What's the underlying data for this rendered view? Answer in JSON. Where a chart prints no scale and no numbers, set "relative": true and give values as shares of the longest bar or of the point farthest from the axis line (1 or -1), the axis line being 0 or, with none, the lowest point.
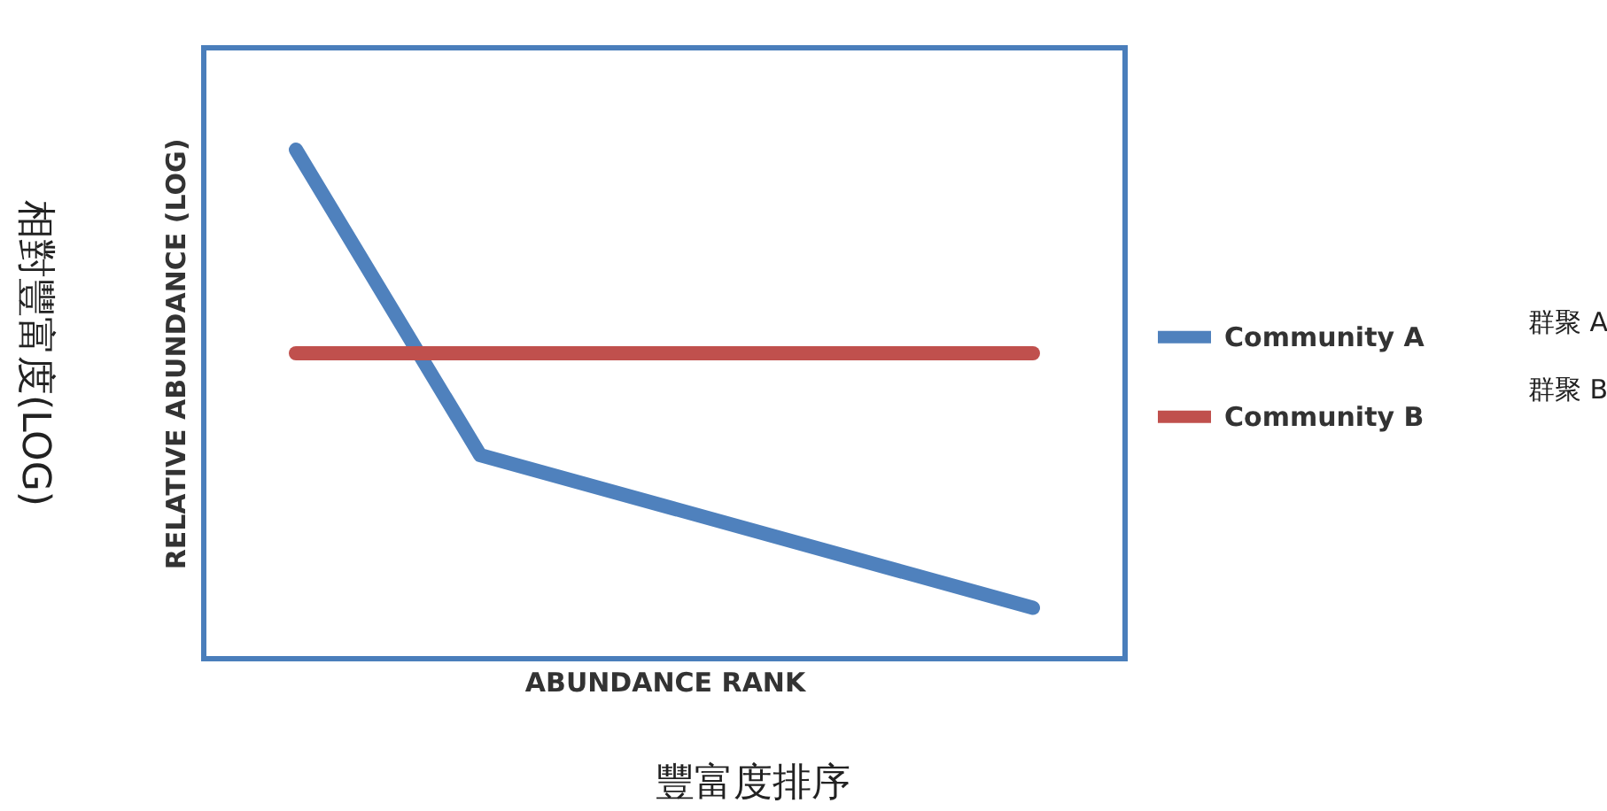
{
  "chart_data": {
    "type": "line",
    "relative": true,
    "xlabel": "ABUNDANCE RANK",
    "ylabel": "RELATIVE ABUNDANCE (LOG)",
    "categories": [
      null,
      null,
      null,
      null,
      null
    ],
    "series": [
      {
        "name": "Community A",
        "color": "#4f81bd",
        "values": [
          1,
          0.4,
          null,
          null,
          0.1
        ]
      },
      {
        "name": "Community B",
        "color": "#c0504d",
        "values": [
          0.6,
          0.6,
          0.6,
          0.6,
          0.6
        ]
      }
    ],
    "legend": "right",
    "grid": false,
    "marker": "none",
    "line_style": "solid",
    "tick_labels": false,
    "annotations": [
      "相對豐富度(LOG)",
      "豐富度排序",
      "群聚 A",
      "群聚 B"
    ]
  }
}
